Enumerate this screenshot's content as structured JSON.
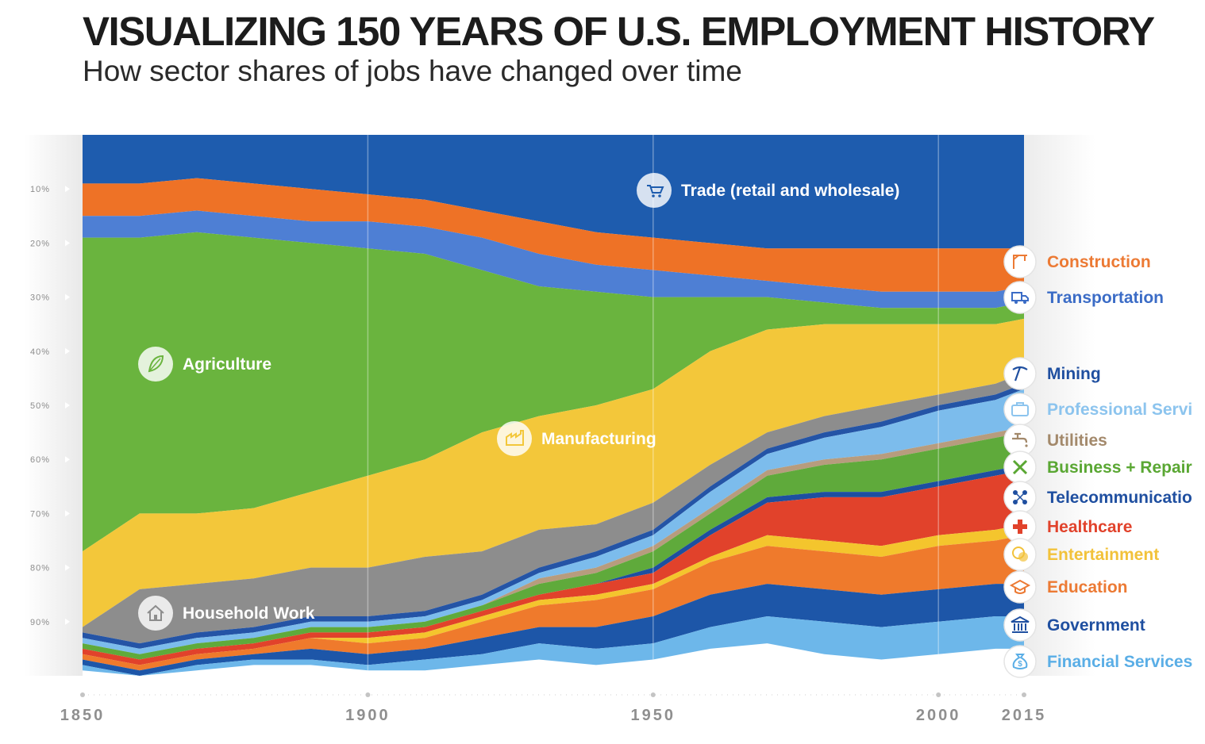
{
  "header": {
    "title": "VISUALIZING 150 YEARS OF U.S. EMPLOYMENT HISTORY",
    "subtitle": "How sector shares of jobs have changed over time"
  },
  "chart_data": {
    "type": "area",
    "stacking": "100%",
    "title": "VISUALIZING 150 YEARS OF U.S. EMPLOYMENT HISTORY",
    "subtitle": "How sector shares of jobs have changed over time",
    "xlabel": "",
    "ylabel": "",
    "x": [
      1850,
      1860,
      1870,
      1880,
      1890,
      1900,
      1910,
      1920,
      1930,
      1940,
      1950,
      1960,
      1970,
      1980,
      1990,
      2000,
      2010,
      2015
    ],
    "x_ticks": [
      "1850",
      "1900",
      "1950",
      "2000",
      "2015"
    ],
    "ylim": [
      0,
      100
    ],
    "y_ticks": [
      "10%",
      "20%",
      "30%",
      "40%",
      "50%",
      "60%",
      "70%",
      "80%",
      "90%"
    ],
    "series": [
      {
        "name": "Trade (retail and wholesale)",
        "color": "#1e5cae",
        "values": [
          9,
          9,
          8,
          9,
          10,
          11,
          12,
          14,
          16,
          18,
          19,
          20,
          21,
          21,
          21,
          21,
          21,
          21
        ]
      },
      {
        "name": "Construction",
        "color": "#ee7226",
        "values": [
          6,
          6,
          6,
          6,
          6,
          5,
          5,
          5,
          6,
          6,
          6,
          6,
          6,
          7,
          8,
          8,
          8,
          7
        ]
      },
      {
        "name": "Transportation",
        "color": "#4e7fd4",
        "values": [
          4,
          4,
          4,
          4,
          4,
          5,
          5,
          6,
          6,
          5,
          5,
          4,
          3,
          3,
          3,
          3,
          3,
          3
        ]
      },
      {
        "name": "Agriculture",
        "color": "#6ab43e",
        "values": [
          58,
          51,
          52,
          50,
          46,
          42,
          38,
          30,
          24,
          21,
          17,
          10,
          6,
          4,
          3,
          3,
          3,
          3
        ]
      },
      {
        "name": "Manufacturing",
        "color": "#f3c73a",
        "values": [
          14,
          14,
          13,
          13,
          14,
          17,
          18,
          22,
          21,
          22,
          21,
          21,
          19,
          17,
          15,
          13,
          11,
          10
        ]
      },
      {
        "name": "Household Work",
        "color": "#8d8d8d",
        "values": [
          1,
          10,
          9,
          9,
          9,
          9,
          10,
          8,
          7,
          5,
          5,
          4,
          3,
          3,
          3,
          2,
          2,
          2
        ]
      },
      {
        "name": "Mining",
        "color": "#2454a6",
        "values": [
          1,
          1,
          1,
          1,
          1,
          1,
          1,
          1,
          1,
          1,
          1,
          1,
          1,
          1,
          1,
          1,
          1,
          1
        ]
      },
      {
        "name": "Professional Services",
        "color": "#7cbcec",
        "values": [
          1,
          1,
          1,
          1,
          1,
          1,
          1,
          1,
          1,
          2,
          2,
          3,
          3,
          4,
          5,
          6,
          6,
          7
        ]
      },
      {
        "name": "Utilities",
        "color": "#b79c7e",
        "values": [
          0,
          0,
          0,
          0,
          0,
          0,
          0,
          0,
          1,
          1,
          1,
          1,
          1,
          1,
          1,
          1,
          1,
          1
        ]
      },
      {
        "name": "Business + Repair",
        "color": "#5faa3b",
        "values": [
          1,
          1,
          1,
          1,
          1,
          1,
          1,
          1,
          2,
          2,
          3,
          3,
          4,
          5,
          6,
          6,
          6,
          6
        ]
      },
      {
        "name": "Telecommunications",
        "color": "#1d4fa0",
        "values": [
          0,
          0,
          0,
          0,
          0,
          0,
          0,
          0,
          0,
          0,
          1,
          1,
          1,
          1,
          1,
          1,
          1,
          1
        ]
      },
      {
        "name": "Healthcare",
        "color": "#e1422b",
        "values": [
          1,
          1,
          1,
          1,
          1,
          1,
          1,
          1,
          1,
          2,
          2,
          4,
          6,
          8,
          9,
          9,
          10,
          10
        ]
      },
      {
        "name": "Entertainment",
        "color": "#f4c52d",
        "values": [
          0,
          0,
          0,
          0,
          0,
          1,
          1,
          1,
          1,
          1,
          1,
          1,
          2,
          2,
          2,
          2,
          2,
          2
        ]
      },
      {
        "name": "Education",
        "color": "#ef7a2c",
        "values": [
          1,
          1,
          1,
          1,
          2,
          2,
          2,
          3,
          4,
          5,
          5,
          6,
          7,
          7,
          7,
          8,
          8,
          9
        ]
      },
      {
        "name": "Government",
        "color": "#1d56a8",
        "values": [
          1,
          1,
          1,
          1,
          2,
          2,
          2,
          3,
          3,
          4,
          5,
          6,
          6,
          6,
          6,
          6,
          6,
          6
        ]
      },
      {
        "name": "Financial Services",
        "color": "#6db7ea",
        "values": [
          1,
          0,
          1,
          1,
          1,
          1,
          2,
          2,
          3,
          3,
          3,
          4,
          5,
          6,
          6,
          6,
          6,
          6
        ]
      }
    ],
    "in_chart_labels": [
      {
        "series": "Trade (retail and wholesale)",
        "text": "Trade (retail and wholesale)",
        "icon": "cart-icon"
      },
      {
        "series": "Agriculture",
        "text": "Agriculture",
        "icon": "leaf-icon"
      },
      {
        "series": "Manufacturing",
        "text": "Manufacturing",
        "icon": "factory-icon"
      },
      {
        "series": "Household Work",
        "text": "Household Work",
        "icon": "house-icon"
      }
    ],
    "right_labels": [
      {
        "text": "Construction",
        "color": "#ec7a34",
        "icon": "crane-icon"
      },
      {
        "text": "Transportation",
        "color": "#3b6cc6",
        "icon": "truck-icon"
      },
      {
        "text": "Mining",
        "color": "#1f4fa0",
        "icon": "pickaxe-icon"
      },
      {
        "text": "Professional Servi",
        "color": "#8cc4ee",
        "icon": "briefcase-icon"
      },
      {
        "text": "Utilities",
        "color": "#a3896b",
        "icon": "faucet-icon"
      },
      {
        "text": "Business + Repair",
        "color": "#5aa733",
        "icon": "tools-icon"
      },
      {
        "text": "Telecommunicatio",
        "color": "#1f4fa0",
        "icon": "network-icon"
      },
      {
        "text": "Healthcare",
        "color": "#e1422b",
        "icon": "cross-icon"
      },
      {
        "text": "Entertainment",
        "color": "#f2c23a",
        "icon": "theater-icon"
      },
      {
        "text": "Education",
        "color": "#ec7a34",
        "icon": "graduation-cap-icon"
      },
      {
        "text": "Government",
        "color": "#1f4fa0",
        "icon": "bank-icon"
      },
      {
        "text": "Financial Services",
        "color": "#5aaee6",
        "icon": "money-bag-icon"
      }
    ]
  }
}
